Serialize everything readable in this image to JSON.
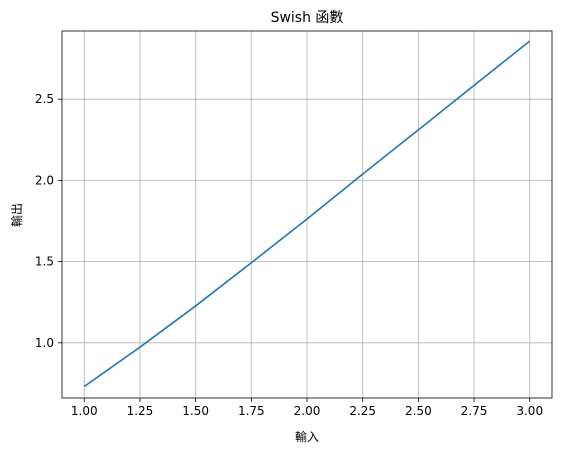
{
  "chart_data": {
    "type": "line",
    "title": "Swish 函數",
    "xlabel": "輸入",
    "ylabel": "輸出",
    "xlim": [
      0.9,
      3.1
    ],
    "ylim": [
      0.66,
      2.92
    ],
    "grid": true,
    "x_ticks": [
      1.0,
      1.25,
      1.5,
      1.75,
      2.0,
      2.25,
      2.5,
      2.75,
      3.0
    ],
    "x_tick_labels": [
      "1.00",
      "1.25",
      "1.50",
      "1.75",
      "2.00",
      "2.25",
      "2.50",
      "2.75",
      "3.00"
    ],
    "y_ticks": [
      1.0,
      1.5,
      2.0,
      2.5
    ],
    "y_tick_labels": [
      "1.0",
      "1.5",
      "2.0",
      "2.5"
    ],
    "series": [
      {
        "color": "#1f77b4",
        "x": [
          1.0,
          1.25,
          1.5,
          1.75,
          2.0,
          2.25,
          2.5,
          2.75,
          3.0
        ],
        "y": [
          0.731,
          0.973,
          1.227,
          1.493,
          1.762,
          2.039,
          2.311,
          2.585,
          2.858
        ]
      }
    ]
  }
}
